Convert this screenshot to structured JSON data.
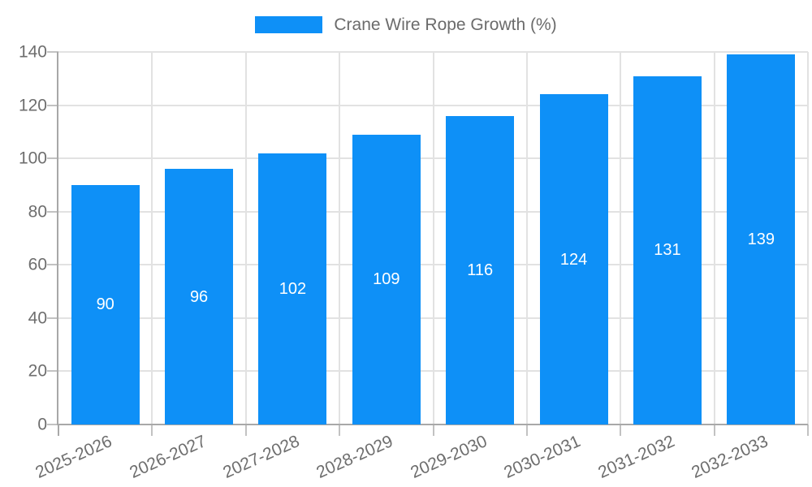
{
  "legend": {
    "label": "Crane Wire Rope Growth (%)"
  },
  "colors": {
    "bar": "#0E90F7",
    "bar_label": "#FFFFFF",
    "grid": "#E2E2E2",
    "axis_line": "#A8A8A8",
    "tick": "#C2C2C2",
    "axis_label": "#6E6E6E",
    "legend_text": "#6B6B6B",
    "background": "#FFFFFF"
  },
  "chart_data": {
    "type": "bar",
    "title": "Crane Wire Rope Growth (%)",
    "categories": [
      "2025-2026",
      "2026-2027",
      "2027-2028",
      "2028-2029",
      "2029-2030",
      "2030-2031",
      "2031-2032",
      "2032-2033"
    ],
    "values": [
      90,
      96,
      102,
      109,
      116,
      124,
      131,
      139
    ],
    "series_name": "Crane Wire Rope Growth (%)",
    "xlabel": "",
    "ylabel": "",
    "ylim": [
      0,
      140
    ],
    "yticks": [
      0,
      20,
      40,
      60,
      80,
      100,
      120,
      140
    ],
    "grid": true,
    "legend_position": "top",
    "x_label_rotation_deg": -24,
    "bar_labels_inside": "center"
  }
}
